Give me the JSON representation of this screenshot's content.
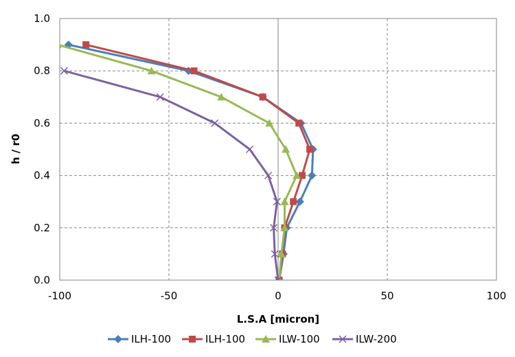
{
  "chart_data": {
    "type": "line",
    "title": "",
    "xlabel": "L.S.A [micron]",
    "ylabel": "h / r0",
    "xlim": [
      -100,
      100
    ],
    "ylim": [
      0.0,
      1.0
    ],
    "x_ticks": [
      "-100",
      "-50",
      "0",
      "50",
      "100"
    ],
    "y_ticks": [
      "0.0",
      "0.2",
      "0.4",
      "0.6",
      "0.8",
      "1.0"
    ],
    "grid": "dashed",
    "legend_position": "bottom",
    "series": [
      {
        "name": "ILH-100",
        "color": "#4a7ebb",
        "marker": "diamond",
        "points": [
          [
            0.5,
            0.0
          ],
          [
            2.5,
            0.1
          ],
          [
            4,
            0.2
          ],
          [
            10,
            0.3
          ],
          [
            15.5,
            0.4
          ],
          [
            16,
            0.5
          ],
          [
            10.5,
            0.6
          ],
          [
            -7,
            0.7
          ],
          [
            -41,
            0.8
          ],
          [
            -96,
            0.9
          ]
        ]
      },
      {
        "name": "ILH-100",
        "color": "#be4b48",
        "marker": "square",
        "points": [
          [
            0.5,
            0.0
          ],
          [
            2,
            0.1
          ],
          [
            3,
            0.2
          ],
          [
            7,
            0.3
          ],
          [
            11,
            0.4
          ],
          [
            14.5,
            0.5
          ],
          [
            9.5,
            0.6
          ],
          [
            -7,
            0.7
          ],
          [
            -38.5,
            0.8
          ],
          [
            -88,
            0.9
          ]
        ]
      },
      {
        "name": "ILW-100",
        "color": "#98b954",
        "marker": "triangle",
        "points": [
          [
            0.5,
            0.0
          ],
          [
            1.5,
            0.1
          ],
          [
            3,
            0.2
          ],
          [
            3,
            0.3
          ],
          [
            8.5,
            0.4
          ],
          [
            3.5,
            0.5
          ],
          [
            -4,
            0.6
          ],
          [
            -26,
            0.7
          ],
          [
            -58,
            0.8
          ],
          [
            -101,
            0.9
          ]
        ]
      },
      {
        "name": "ILW-200",
        "color": "#7d60a0",
        "marker": "x",
        "points": [
          [
            0,
            0.0
          ],
          [
            -1.5,
            0.1
          ],
          [
            -2,
            0.2
          ],
          [
            -0.5,
            0.3
          ],
          [
            -4.5,
            0.4
          ],
          [
            -13,
            0.5
          ],
          [
            -29,
            0.6
          ],
          [
            -54,
            0.7
          ],
          [
            -98,
            0.8
          ]
        ]
      }
    ]
  }
}
